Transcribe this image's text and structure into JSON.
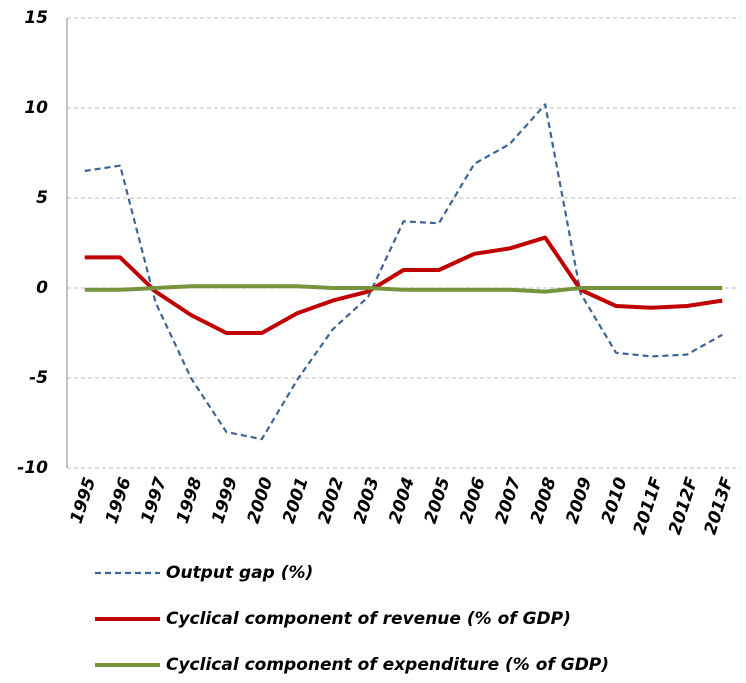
{
  "chart_data": {
    "type": "line",
    "categories": [
      "1995",
      "1996",
      "1997",
      "1998",
      "1999",
      "2000",
      "2001",
      "2002",
      "2003",
      "2004",
      "2005",
      "2006",
      "2007",
      "2008",
      "2009",
      "2010",
      "2011F",
      "2012F",
      "2013F"
    ],
    "series": [
      {
        "name": "Output gap  (%)",
        "color": "#3d6496",
        "style": "dashed",
        "values": [
          6.5,
          6.8,
          -0.8,
          -5.0,
          -8.0,
          -8.4,
          -5.1,
          -2.3,
          -0.5,
          3.7,
          3.6,
          6.9,
          8.0,
          10.2,
          -0.3,
          -3.6,
          -3.8,
          -3.7,
          -2.6
        ]
      },
      {
        "name": "Cyclical component  of  revenue (% of GDP)",
        "color": "#c00000",
        "style": "solid",
        "values": [
          1.7,
          1.7,
          -0.2,
          -1.5,
          -2.5,
          -2.5,
          -1.4,
          -0.7,
          -0.2,
          1.0,
          1.0,
          1.9,
          2.2,
          2.8,
          -0.1,
          -1.0,
          -1.1,
          -1.0,
          -0.7
        ]
      },
      {
        "name": "Cyclical component  of  expenditure  (% of GDP)",
        "color": "#77933c",
        "style": "solid",
        "values": [
          -0.1,
          -0.1,
          0.0,
          0.1,
          0.1,
          0.1,
          0.1,
          0.0,
          0.0,
          -0.1,
          -0.1,
          -0.1,
          -0.1,
          -0.2,
          0.0,
          0.0,
          0.0,
          0.0,
          0.0
        ]
      }
    ],
    "ylim": [
      -10,
      15
    ],
    "yticks": [
      -10,
      -5,
      0,
      5,
      10,
      15
    ],
    "grid": true,
    "legend": "bottom"
  }
}
